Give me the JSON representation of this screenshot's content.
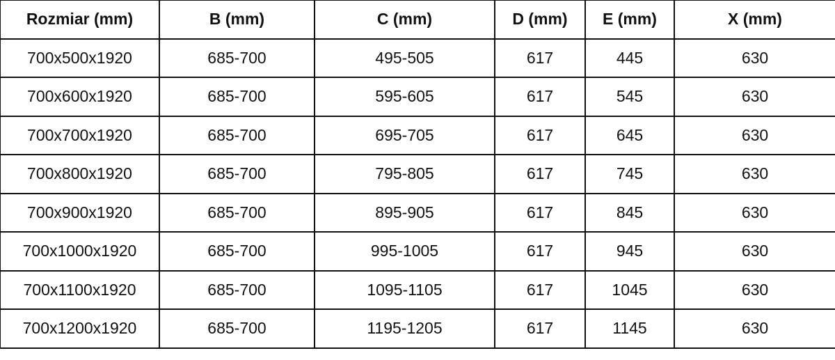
{
  "table": {
    "headers": [
      "Rozmiar (mm)",
      "B (mm)",
      "C (mm)",
      "D (mm)",
      "E (mm)",
      "X (mm)"
    ],
    "rows": [
      [
        "700x500x1920",
        "685-700",
        "495-505",
        "617",
        "445",
        "630"
      ],
      [
        "700x600x1920",
        "685-700",
        "595-605",
        "617",
        "545",
        "630"
      ],
      [
        "700x700x1920",
        "685-700",
        "695-705",
        "617",
        "645",
        "630"
      ],
      [
        "700x800x1920",
        "685-700",
        "795-805",
        "617",
        "745",
        "630"
      ],
      [
        "700x900x1920",
        "685-700",
        "895-905",
        "617",
        "845",
        "630"
      ],
      [
        "700x1000x1920",
        "685-700",
        "995-1005",
        "617",
        "945",
        "630"
      ],
      [
        "700x1100x1920",
        "685-700",
        "1095-1105",
        "617",
        "1045",
        "630"
      ],
      [
        "700x1200x1920",
        "685-700",
        "1195-1205",
        "617",
        "1145",
        "630"
      ]
    ]
  }
}
